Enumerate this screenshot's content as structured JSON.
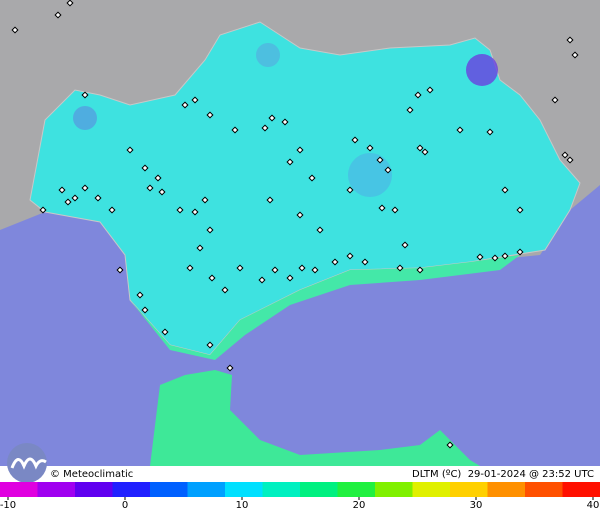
{
  "map": {
    "credit": "© Meteoclimatic",
    "caption": "DLTM (ºC)  29-01-2024 @ 23:52 UTC"
  },
  "colorbar": {
    "ticks": [
      -10,
      0,
      10,
      20,
      30,
      40
    ],
    "colors": [
      "#e000e0",
      "#a000f0",
      "#6000f0",
      "#2020ff",
      "#0060ff",
      "#00a0ff",
      "#00e0ff",
      "#00f0c0",
      "#00f080",
      "#20f040",
      "#80f000",
      "#e0f000",
      "#ffd000",
      "#ff9000",
      "#ff5000",
      "#ff1000"
    ]
  }
}
